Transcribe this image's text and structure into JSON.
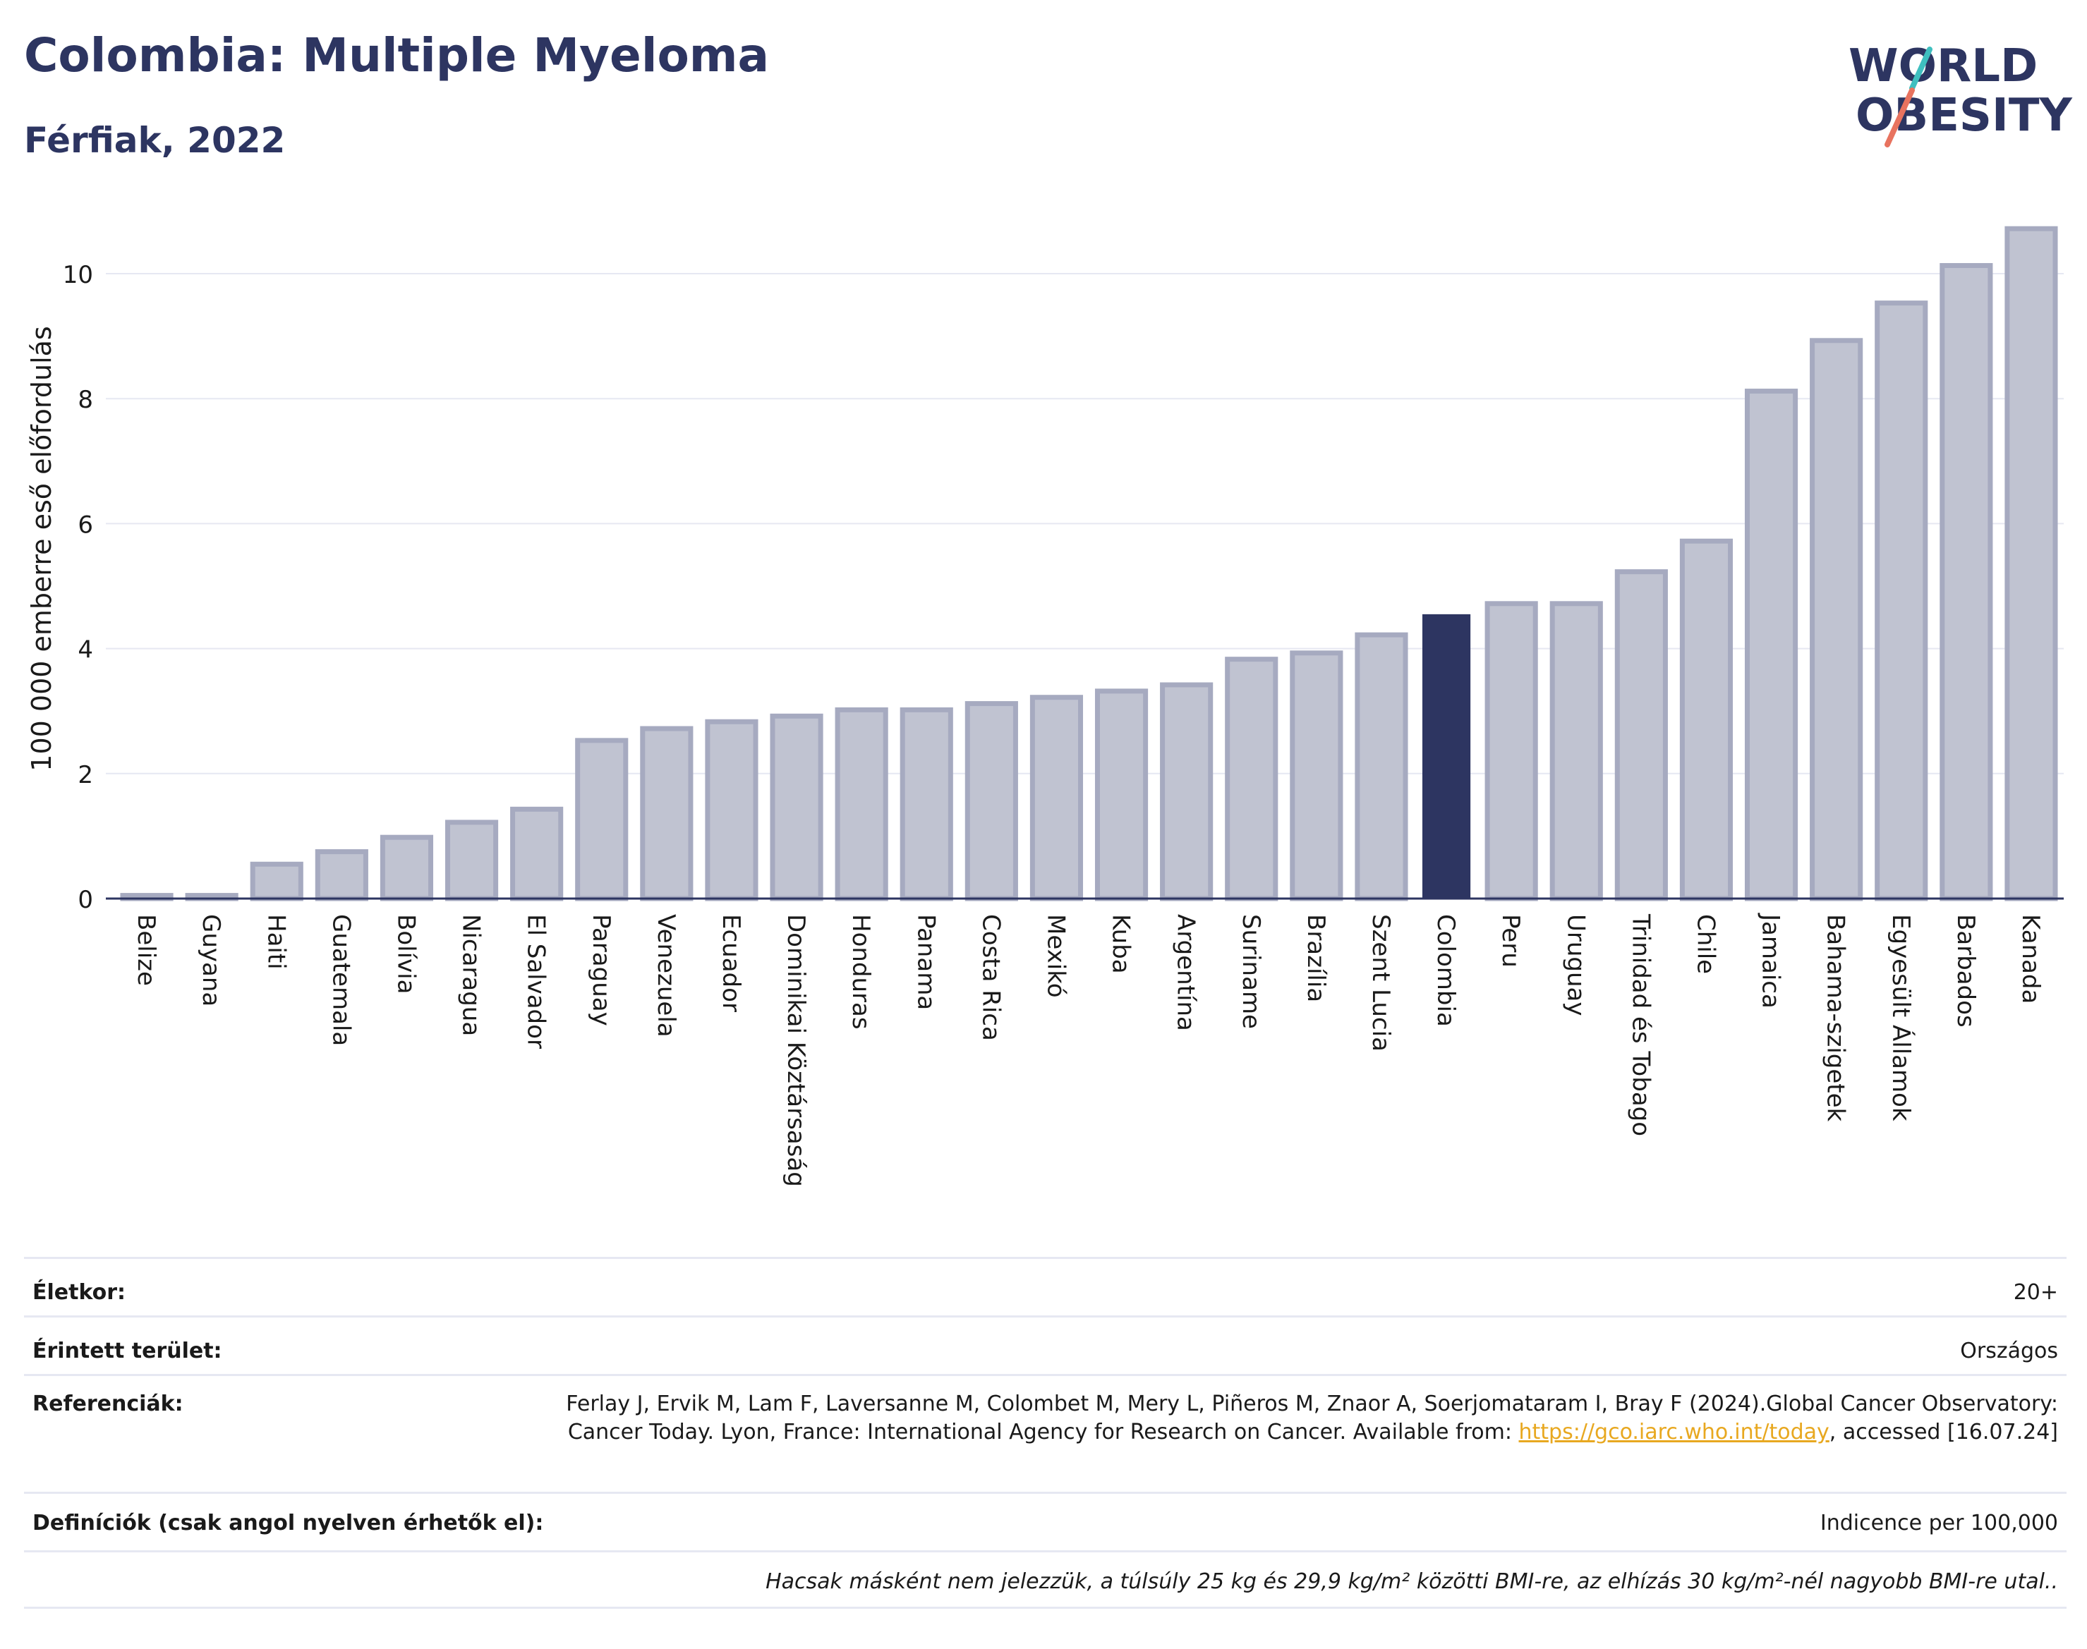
{
  "header": {
    "title": "Colombia: Multiple Myeloma",
    "subtitle": "Férfiak, 2022",
    "logo_line1": "WORLD",
    "logo_line2": "OBESITY"
  },
  "colors": {
    "bar": "#c0c3d1",
    "bar_stroke": "#a6aac0",
    "highlight": "#2d3561",
    "grid": "#e6e8f2",
    "text_dark": "#2d3561",
    "link": "#e8a820",
    "logo_teal": "#3fbfbf",
    "logo_coral": "#e8735f"
  },
  "chart_data": {
    "type": "bar",
    "title": "Colombia: Multiple Myeloma",
    "subtitle": "Férfiak, 2022",
    "ylabel": "100 000 emberre eső előfordulás",
    "xlabel": "",
    "ylim": [
      0,
      11
    ],
    "yticks": [
      0,
      2,
      4,
      6,
      8,
      10
    ],
    "grid": true,
    "highlight": "Colombia",
    "categories": [
      "Belize",
      "Guyana",
      "Haiti",
      "Guatemala",
      "Bolívia",
      "Nicaragua",
      "El Salvador",
      "Paraguay",
      "Venezuela",
      "Ecuador",
      "Dominikai Köztársaság",
      "Honduras",
      "Panama",
      "Costa Rica",
      "Mexikó",
      "Kuba",
      "Argentína",
      "Suriname",
      "Brazília",
      "Szent Lucia",
      "Colombia",
      "Peru",
      "Uruguay",
      "Trinidad és Tobago",
      "Chile",
      "Jamaica",
      "Bahama-szigetek",
      "Egyesült Államok",
      "Barbados",
      "Kanada"
    ],
    "values": [
      0.05,
      0.05,
      0.55,
      0.75,
      0.98,
      1.22,
      1.43,
      2.53,
      2.72,
      2.83,
      2.92,
      3.02,
      3.02,
      3.12,
      3.22,
      3.32,
      3.42,
      3.83,
      3.93,
      4.22,
      4.55,
      4.72,
      4.72,
      5.23,
      5.72,
      8.12,
      8.93,
      9.53,
      10.13,
      10.72
    ]
  },
  "meta": {
    "age_label": "Életkor:",
    "age_value": "20+",
    "area_label": "Érintett terület:",
    "area_value": "Országos",
    "ref_label": "Referenciák:",
    "ref_text_1": "Ferlay J, Ervik M, Lam F, Laversanne M, Colombet M, Mery L, Piñeros M, Znaor A, Soerjomataram I, Bray F (2024).Global Cancer Observatory: Cancer Today. Lyon, France: International Agency for Research on Cancer. Available from: ",
    "ref_link": "https://gco.iarc.who.int/today",
    "ref_text_2": ", accessed [16.07.24]",
    "def_label": "Definíciók (csak angol nyelven érhetők el):",
    "def_value": "Indicence per 100,000",
    "footnote": "Hacsak másként nem jelezzük, a túlsúly 25 kg és 29,9 kg/m² közötti BMI-re, az elhízás 30 kg/m²-nél nagyobb BMI-re utal.."
  }
}
